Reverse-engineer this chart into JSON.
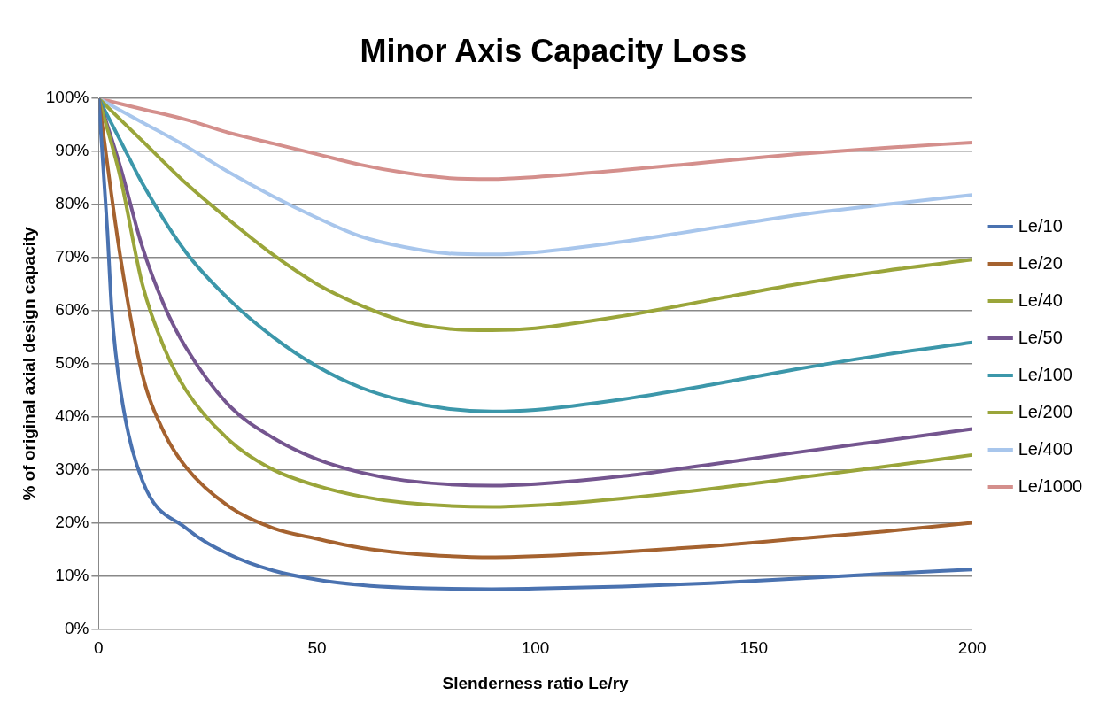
{
  "chart_data": {
    "type": "line",
    "title": "Minor Axis Capacity Loss",
    "xlabel": "Slenderness ratio Le/ry",
    "ylabel": "% of original axial design capacity",
    "xlim": [
      0,
      200
    ],
    "xticks": [
      0,
      50,
      100,
      150,
      200
    ],
    "ylim": [
      0,
      100
    ],
    "yticks": [
      {
        "value": 0,
        "label": "0%"
      },
      {
        "value": 10,
        "label": "10%"
      },
      {
        "value": 20,
        "label": "20%"
      },
      {
        "value": 30,
        "label": "30%"
      },
      {
        "value": 40,
        "label": "40%"
      },
      {
        "value": 50,
        "label": "50%"
      },
      {
        "value": 60,
        "label": "60%"
      },
      {
        "value": 70,
        "label": "70%"
      },
      {
        "value": 80,
        "label": "80%"
      },
      {
        "value": 90,
        "label": "90%"
      },
      {
        "value": 100,
        "label": "100%"
      }
    ],
    "grid": "y",
    "legend": "right",
    "marker": "none",
    "series": [
      {
        "name": "Le/10",
        "color": "#4a72b0",
        "x": [
          0,
          2,
          3,
          5,
          10,
          20,
          30,
          40,
          50,
          60,
          70,
          90,
          100,
          120,
          140,
          160,
          180,
          200
        ],
        "values": [
          100,
          75,
          60,
          45,
          28,
          19,
          14,
          11,
          9.3,
          8.3,
          7.8,
          7.5,
          7.6,
          8,
          8.6,
          9.5,
          10.4,
          11.2
        ]
      },
      {
        "name": "Le/20",
        "color": "#a5622f",
        "x": [
          0,
          5,
          10,
          15,
          20,
          30,
          40,
          50,
          60,
          70,
          90,
          100,
          120,
          140,
          160,
          180,
          200
        ],
        "values": [
          100,
          70,
          48,
          37,
          30.5,
          23,
          19,
          17,
          15.3,
          14.3,
          13.5,
          13.7,
          14.5,
          15.6,
          17,
          18.4,
          20
        ]
      },
      {
        "name": "Le/40",
        "color": "#9aa53a",
        "x": [
          0,
          5,
          10,
          15,
          20,
          30,
          40,
          50,
          60,
          70,
          90,
          100,
          120,
          140,
          160,
          180,
          200
        ],
        "values": [
          100,
          85,
          65,
          53,
          45,
          35.5,
          30,
          27,
          25,
          23.8,
          23,
          23.3,
          24.6,
          26.4,
          28.5,
          30.6,
          32.8
        ]
      },
      {
        "name": "Le/50",
        "color": "#74558f",
        "x": [
          0,
          5,
          10,
          15,
          20,
          30,
          40,
          50,
          60,
          70,
          90,
          100,
          120,
          140,
          160,
          180,
          200
        ],
        "values": [
          100,
          87,
          72,
          61,
          53,
          42,
          36,
          32,
          29.5,
          28,
          27,
          27.3,
          28.8,
          31,
          33.3,
          35.5,
          37.7
        ]
      },
      {
        "name": "Le/100",
        "color": "#3c97aa",
        "x": [
          0,
          5,
          10,
          20,
          30,
          40,
          50,
          60,
          70,
          80,
          90,
          100,
          120,
          140,
          160,
          180,
          200
        ],
        "values": [
          100,
          92,
          84,
          71,
          62,
          55,
          49.5,
          45.5,
          43,
          41.5,
          41,
          41.3,
          43.3,
          46,
          49,
          51.7,
          54
        ]
      },
      {
        "name": "Le/200",
        "color": "#9aa53a",
        "x": [
          0,
          10,
          20,
          30,
          40,
          50,
          60,
          70,
          80,
          90,
          100,
          120,
          140,
          160,
          180,
          200
        ],
        "values": [
          100,
          92,
          84,
          77,
          70.5,
          65,
          61,
          58,
          56.6,
          56.3,
          56.7,
          59,
          62,
          65,
          67.5,
          69.6
        ]
      },
      {
        "name": "Le/400",
        "color": "#a8c6ec",
        "x": [
          0,
          10,
          20,
          30,
          40,
          50,
          60,
          70,
          80,
          90,
          100,
          120,
          140,
          160,
          180,
          200
        ],
        "values": [
          100,
          95.5,
          91,
          86,
          81.5,
          77.5,
          74,
          72,
          70.8,
          70.6,
          71,
          73,
          75.5,
          78,
          80,
          81.8
        ]
      },
      {
        "name": "Le/1000",
        "color": "#d48f8c",
        "x": [
          0,
          10,
          20,
          30,
          40,
          50,
          60,
          70,
          80,
          90,
          100,
          120,
          140,
          160,
          180,
          200
        ],
        "values": [
          100,
          98,
          96,
          93.5,
          91.5,
          89.5,
          87.5,
          86,
          85,
          84.8,
          85.2,
          86.5,
          88,
          89.5,
          90.7,
          91.7
        ]
      }
    ]
  }
}
